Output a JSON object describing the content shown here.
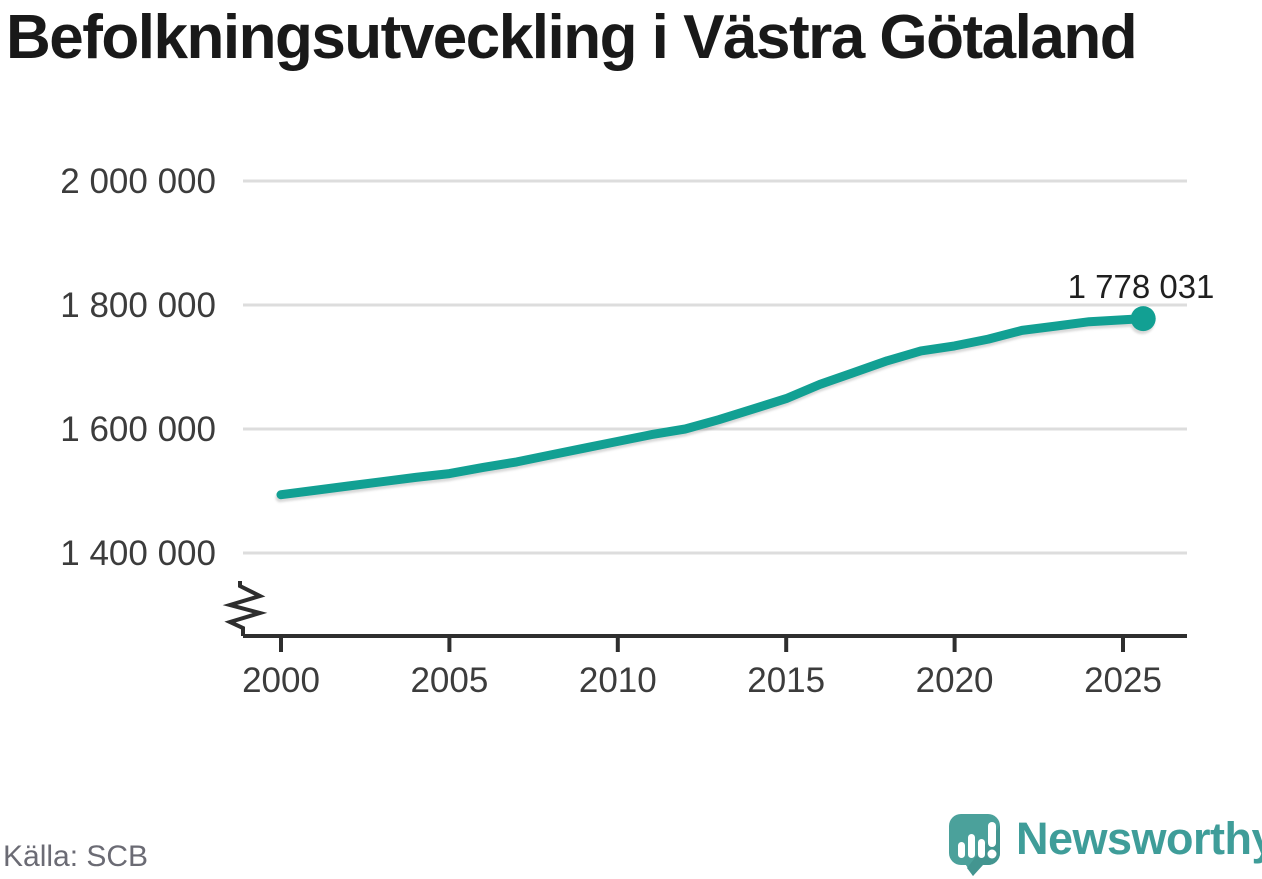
{
  "title": "Befolkningsutveckling i Västra Götaland",
  "source": "Källa: SCB",
  "brand": {
    "name": "Newsworthy",
    "icon": "newsworthy-speech-bubble-barchart-icon",
    "icon_color": "#4ba19b",
    "wordmark_color": "#3f9d99"
  },
  "colors": {
    "line": "#12a093",
    "grid": "#dddddd",
    "axis": "#2e2e2e",
    "tick_label": "#3c3c3c",
    "title": "#191919",
    "annotation": "#1f1f1f",
    "source": "#6b6b74"
  },
  "chart_data": {
    "type": "line",
    "title": "Befolkningsutveckling i Västra Götaland",
    "xlabel": "",
    "ylabel": "",
    "grid": "horizontal",
    "legend": "none",
    "axis_break_bottom_left": true,
    "ylim": [
      1400000,
      2000000
    ],
    "xlim": [
      2000,
      2025.6
    ],
    "x": [
      2000,
      2001,
      2002,
      2003,
      2004,
      2005,
      2006,
      2007,
      2008,
      2009,
      2010,
      2011,
      2012,
      2013,
      2014,
      2015,
      2016,
      2017,
      2018,
      2019,
      2020,
      2021,
      2022,
      2023,
      2024,
      2025.6
    ],
    "series": [
      {
        "name": "Västra Götaland",
        "values": [
          1494000,
          1501000,
          1508000,
          1515000,
          1522000,
          1528000,
          1538000,
          1547000,
          1558000,
          1569000,
          1580000,
          1591000,
          1600000,
          1615000,
          1632000,
          1649000,
          1672000,
          1691000,
          1710000,
          1726000,
          1734000,
          1745000,
          1759000,
          1766000,
          1773000,
          1778031
        ]
      }
    ],
    "y_ticks": [
      {
        "label": "2 000 000",
        "value": 2000000
      },
      {
        "label": "1 800 000",
        "value": 1800000
      },
      {
        "label": "1 600 000",
        "value": 1600000
      },
      {
        "label": "1 400 000",
        "value": 1400000
      }
    ],
    "x_ticks": [
      {
        "label": "2000",
        "value": 2000
      },
      {
        "label": "2005",
        "value": 2005
      },
      {
        "label": "2010",
        "value": 2010
      },
      {
        "label": "2015",
        "value": 2015
      },
      {
        "label": "2020",
        "value": 2020
      },
      {
        "label": "2025",
        "value": 2025
      }
    ],
    "last_point_label": "1 778 031",
    "last_point_value": 1778031
  }
}
